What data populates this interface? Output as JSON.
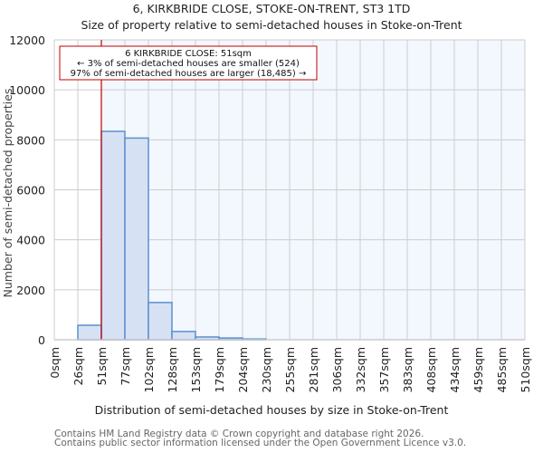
{
  "header": {
    "title": "6, KIRKBRIDE CLOSE, STOKE-ON-TRENT, ST3 1TD",
    "subtitle": "Size of property relative to semi-detached houses in Stoke-on-Trent"
  },
  "annotation": {
    "line1": "6 KIRKBRIDE CLOSE: 51sqm",
    "line2": "← 3% of semi-detached houses are smaller (524)",
    "line3": "97% of semi-detached houses are larger (18,485) →"
  },
  "axes": {
    "xlabel": "Distribution of semi-detached houses by size in Stoke-on-Trent",
    "ylabel": "Number of semi-detached properties"
  },
  "footer": {
    "line1": "Contains HM Land Registry data © Crown copyright and database right 2026.",
    "line2": "Contains public sector information licensed under the Open Government Licence v3.0."
  },
  "colors": {
    "bar_fill": "#d6e2f3",
    "bar_stroke": "#5b8fd0",
    "highlight_bg": "#f3f7fe",
    "marker_line": "#c00000",
    "grid": "#cccccc"
  },
  "chart_data": {
    "type": "bar",
    "title": "6, KIRKBRIDE CLOSE, STOKE-ON-TRENT, ST3 1TD",
    "subtitle": "Size of property relative to semi-detached houses in Stoke-on-Trent",
    "xlabel": "Distribution of semi-detached houses by size in Stoke-on-Trent",
    "ylabel": "Number of semi-detached properties",
    "categories": [
      "0sqm",
      "26sqm",
      "51sqm",
      "77sqm",
      "102sqm",
      "128sqm",
      "153sqm",
      "179sqm",
      "204sqm",
      "230sqm",
      "255sqm",
      "281sqm",
      "306sqm",
      "332sqm",
      "357sqm",
      "383sqm",
      "408sqm",
      "434sqm",
      "459sqm",
      "485sqm",
      "510sqm"
    ],
    "bin_edges": [
      0,
      25.5,
      51,
      76.5,
      102,
      127.5,
      153,
      178.5,
      204,
      229.5,
      255,
      280.5,
      306,
      331.5,
      357,
      382.5,
      408,
      433.5,
      459,
      484.5,
      510
    ],
    "values": [
      0,
      580,
      8340,
      8070,
      1490,
      330,
      110,
      70,
      30,
      0,
      0,
      0,
      0,
      0,
      0,
      0,
      0,
      0,
      0,
      0
    ],
    "yticks": [
      0,
      2000,
      4000,
      6000,
      8000,
      10000,
      12000
    ],
    "ylim": [
      0,
      12000
    ],
    "xlim": [
      0,
      510
    ],
    "grid": true,
    "marker": {
      "x": 51,
      "label": "6 KIRKBRIDE CLOSE: 51sqm"
    },
    "annotations": [
      "6 KIRKBRIDE CLOSE: 51sqm",
      "← 3% of semi-detached houses are smaller (524)",
      "97% of semi-detached houses are larger (18,485) →"
    ]
  }
}
